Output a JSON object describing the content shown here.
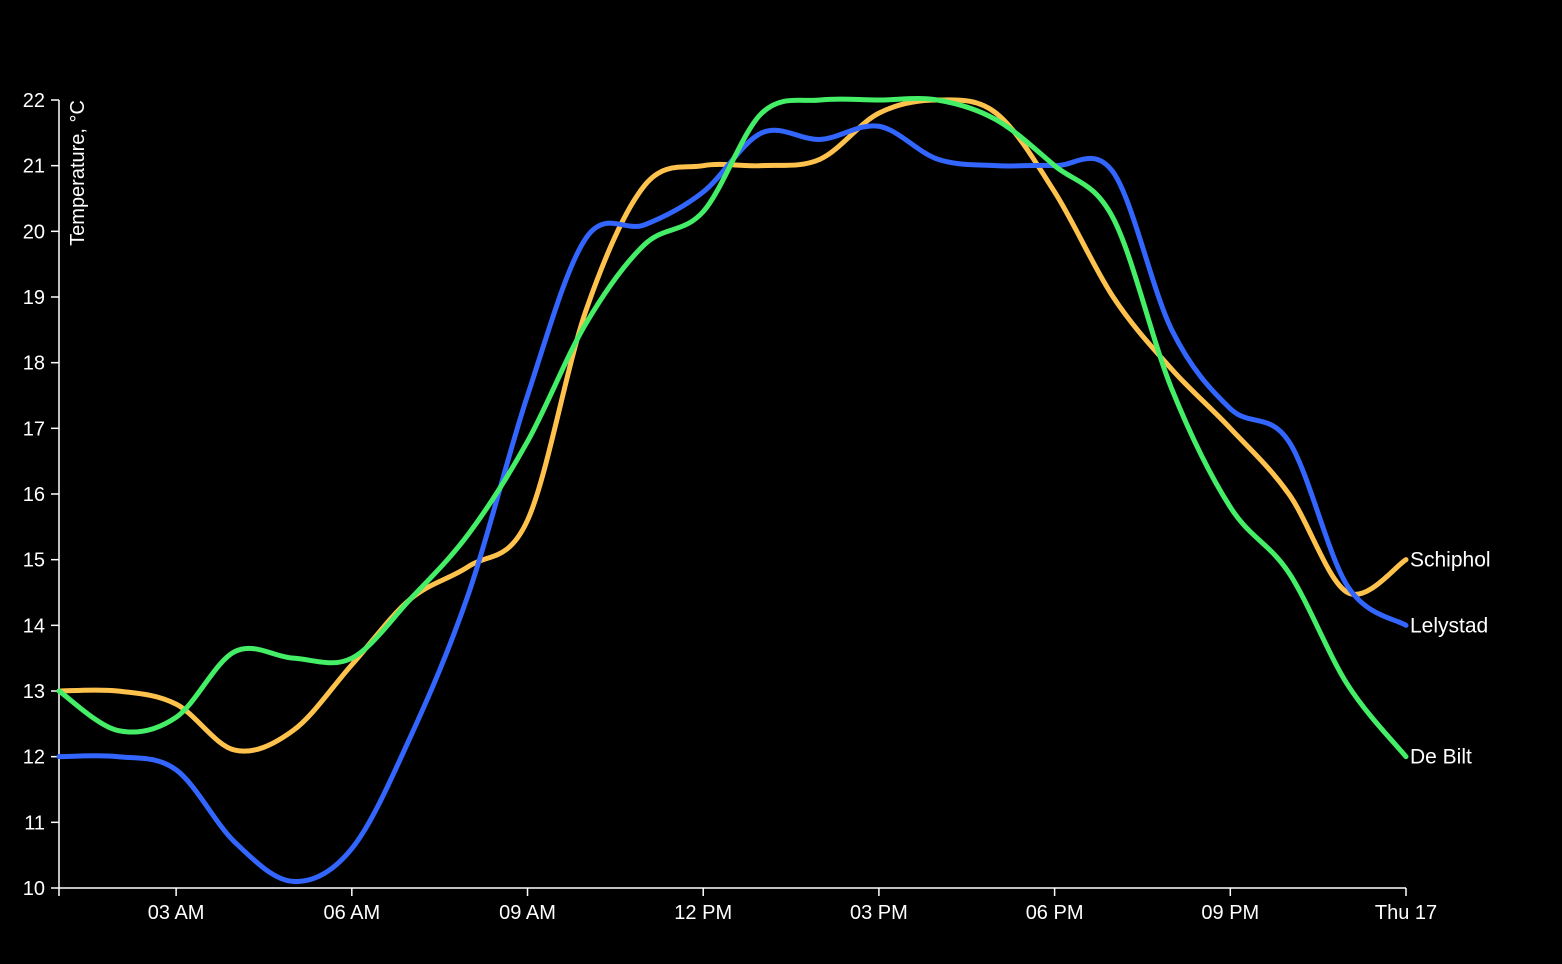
{
  "chart_data": {
    "type": "line",
    "ylabel": "Temperature, °C",
    "ylim": [
      10,
      22
    ],
    "y_ticks": [
      "10",
      "11",
      "12",
      "13",
      "14",
      "15",
      "16",
      "17",
      "18",
      "19",
      "20",
      "21",
      "22"
    ],
    "x_ticks": [
      "03 AM",
      "06 AM",
      "09 AM",
      "12 PM",
      "03 PM",
      "06 PM",
      "09 PM",
      "Thu 17"
    ],
    "x_hours": [
      0,
      1,
      2,
      3,
      4,
      5,
      6,
      7,
      8,
      9,
      10,
      11,
      12,
      13,
      14,
      15,
      16,
      17,
      18,
      19,
      20,
      21,
      22,
      23
    ],
    "grid": false,
    "legend": "inline labels at line ends (right)",
    "series": [
      {
        "name": "Schiphol",
        "color": "#ffc34d",
        "values": [
          13,
          13,
          12.8,
          12.1,
          12.4,
          13.4,
          14.4,
          14.9,
          15.6,
          18.8,
          20.7,
          21,
          21,
          21.1,
          21.8,
          22,
          21.8,
          20.6,
          19,
          17.9,
          17,
          16,
          14.5,
          15
        ]
      },
      {
        "name": "Lelystad",
        "color": "#3366ff",
        "values": [
          12,
          12,
          11.8,
          10.7,
          10.1,
          10.6,
          12.3,
          14.5,
          17.5,
          19.9,
          20.1,
          20.6,
          21.5,
          21.4,
          21.6,
          21.1,
          21,
          21,
          20.9,
          18.5,
          17.3,
          16.8,
          14.6,
          14
        ]
      },
      {
        "name": "De Bilt",
        "color": "#44ee66",
        "values": [
          13,
          12.4,
          12.6,
          13.6,
          13.5,
          13.5,
          14.4,
          15.4,
          16.8,
          18.6,
          19.8,
          20.3,
          21.8,
          22,
          22,
          22,
          21.7,
          21.0,
          20.2,
          17.6,
          15.8,
          14.8,
          13.1,
          12
        ]
      }
    ]
  }
}
